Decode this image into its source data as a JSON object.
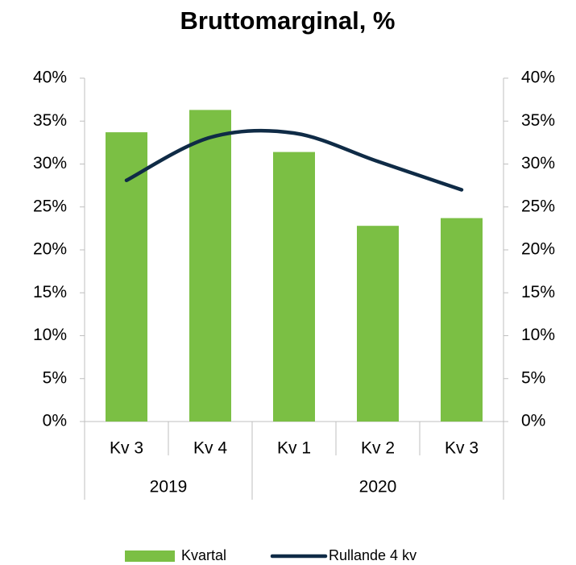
{
  "chart_data": {
    "type": "bar",
    "title": "Bruttomarginal, %",
    "categories": [
      "Kv 3",
      "Kv 4",
      "Kv 1",
      "Kv 2",
      "Kv 3"
    ],
    "groups": [
      {
        "label": "2019",
        "size": 2
      },
      {
        "label": "2020",
        "size": 3
      }
    ],
    "series": [
      {
        "name": "Kvartal",
        "type": "bar",
        "color": "#7bbf44",
        "values": [
          33.7,
          36.3,
          31.4,
          22.8,
          23.7
        ]
      },
      {
        "name": "Rullande 4 kv",
        "type": "line",
        "axis": "y2",
        "color": "#0f2b46",
        "values": [
          28.1,
          33.1,
          33.6,
          30.3,
          27.0
        ]
      }
    ],
    "ylim": [
      0,
      40
    ],
    "yticks": [
      {
        "value": 0,
        "label": "0%"
      },
      {
        "value": 5,
        "label": "5%"
      },
      {
        "value": 10,
        "label": "10%"
      },
      {
        "value": 15,
        "label": "15%"
      },
      {
        "value": 20,
        "label": "20%"
      },
      {
        "value": 25,
        "label": "25%"
      },
      {
        "value": 30,
        "label": "30%"
      },
      {
        "value": 35,
        "label": "35%"
      },
      {
        "value": 40,
        "label": "40%"
      }
    ],
    "y2lim": [
      0,
      40
    ],
    "y2ticks": [
      {
        "value": 0,
        "label": "0%"
      },
      {
        "value": 5,
        "label": "5%"
      },
      {
        "value": 10,
        "label": "10%"
      },
      {
        "value": 15,
        "label": "15%"
      },
      {
        "value": 20,
        "label": "20%"
      },
      {
        "value": 25,
        "label": "25%"
      },
      {
        "value": 30,
        "label": "30%"
      },
      {
        "value": 35,
        "label": "35%"
      },
      {
        "value": 40,
        "label": "40%"
      }
    ],
    "grid": false,
    "legend": "bottom"
  }
}
